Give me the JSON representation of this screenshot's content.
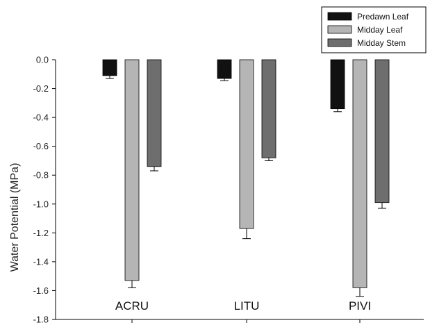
{
  "chart_data": {
    "type": "bar",
    "title": "",
    "xlabel": "",
    "ylabel": "Water Potential (MPa)",
    "ylim": [
      -1.8,
      0.0
    ],
    "yticks": [
      "0.0",
      "-0.2",
      "-0.4",
      "-0.6",
      "-0.8",
      "-1.0",
      "-1.2",
      "-1.4",
      "-1.6",
      "-1.8"
    ],
    "categories": [
      "ACRU",
      "LITU",
      "PIVI"
    ],
    "legend_position": "top-right",
    "grid": false,
    "series": [
      {
        "name": "Predawn Leaf",
        "color": "#111111",
        "values": [
          -0.11,
          -0.13,
          -0.34
        ],
        "errors": [
          0.02,
          0.015,
          0.02
        ]
      },
      {
        "name": "Midday Leaf",
        "color": "#b5b5b5",
        "values": [
          -1.53,
          -1.17,
          -1.58
        ],
        "errors": [
          0.05,
          0.07,
          0.06
        ]
      },
      {
        "name": "Midday Stem",
        "color": "#6e6e6e",
        "values": [
          -0.74,
          -0.68,
          -0.99
        ],
        "errors": [
          0.03,
          0.02,
          0.04
        ]
      }
    ]
  }
}
